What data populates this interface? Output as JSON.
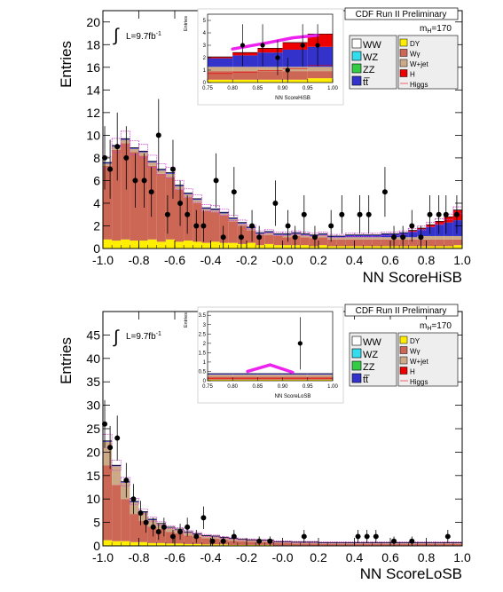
{
  "chart_data": [
    {
      "type": "bar",
      "label": "HiSB",
      "header": "CDF Run II Preliminary",
      "mass_label": "m",
      "mass_sub": "H",
      "mass_value": "=170",
      "lumi": "L=9.7fb",
      "lumi_sup": "-1",
      "integral_symbol": "∫",
      "xlabel": "NN ScoreHiSB",
      "ylabel": "Entries",
      "xlim": [
        -1.0,
        1.0
      ],
      "ylim": [
        0,
        21
      ],
      "xticks": [
        "-1.0",
        "-0.8",
        "-0.6",
        "-0.4",
        "-0.2",
        "-0.0",
        "0.2",
        "0.4",
        "0.6",
        "0.8",
        "1.0"
      ],
      "yticks": [
        "0",
        "2",
        "4",
        "6",
        "8",
        "10",
        "12",
        "14",
        "16",
        "18",
        "20"
      ],
      "legend_left": [
        {
          "name": "WW",
          "color": "#ffffff"
        },
        {
          "name": "WZ",
          "color": "#33ddee"
        },
        {
          "name": "ZZ",
          "color": "#33cc44"
        },
        {
          "name": "tt̅",
          "color": "#3333cc"
        }
      ],
      "legend_right": [
        {
          "name": "DY",
          "color": "#ffee00"
        },
        {
          "name": "Wγ",
          "color": "#cc6655"
        },
        {
          "name": "W+jet",
          "color": "#ccaa88"
        },
        {
          "name": "H",
          "color": "#ee0000"
        },
        {
          "name": "Higgs",
          "color": "#ee6666"
        }
      ],
      "stack_colors": {
        "DY": "#ffee00",
        "Wg": "#cc6655",
        "Wjet": "#ccaa88",
        "H": "#ee0000",
        "ttbar": "#3333cc",
        "ZZ": "#33cc44",
        "WZ": "#33ddee",
        "WW": "#ffffff",
        "band": "#cc44cc"
      },
      "bin_edges_range": [
        -1.0,
        1.0
      ],
      "bins": 40,
      "dy": [
        0.8,
        0.7,
        0.8,
        0.7,
        0.7,
        0.8,
        0.6,
        0.8,
        0.6,
        0.7,
        0.6,
        0.5,
        0.6,
        0.5,
        0.5,
        0.4,
        0.5,
        0.3,
        0.4,
        0.3,
        0.3,
        0.3,
        0.3,
        0.2,
        0.3,
        0.2,
        0.2,
        0.2,
        0.2,
        0.2,
        0.2,
        0.2,
        0.2,
        0.2,
        0.2,
        0.2,
        0.2,
        0.2,
        0.2,
        0.3
      ],
      "wg": [
        6.5,
        8.0,
        8.5,
        7.8,
        7.5,
        6.5,
        6.0,
        5.5,
        4.6,
        3.8,
        3.4,
        2.8,
        2.6,
        2.4,
        1.9,
        1.6,
        1.1,
        0.9,
        0.8,
        0.8,
        0.7,
        0.8,
        0.7,
        0.7,
        0.7,
        0.6,
        0.6,
        0.6,
        0.6,
        0.6,
        0.6,
        0.6,
        0.6,
        0.6,
        0.6,
        0.6,
        0.6,
        0.6,
        0.6,
        0.5
      ],
      "wjet": [
        0.2,
        0.3,
        0.3,
        0.3,
        0.3,
        0.3,
        0.3,
        0.3,
        0.3,
        0.3,
        0.3,
        0.2,
        0.2,
        0.2,
        0.2,
        0.2,
        0.2,
        0.1,
        0.2,
        0.1,
        0.2,
        0.2,
        0.2,
        0.2,
        0.2,
        0.2,
        0.2,
        0.2,
        0.2,
        0.2,
        0.2,
        0.2,
        0.2,
        0.2,
        0.2,
        0.3,
        0.3,
        0.3,
        0.3,
        0.3
      ],
      "other": [
        0.1,
        0.1,
        0.1,
        0.1,
        0.1,
        0.1,
        0.1,
        0.1,
        0.1,
        0.1,
        0.1,
        0.1,
        0.1,
        0.1,
        0.1,
        0.1,
        0.1,
        0.1,
        0.1,
        0.1,
        0.1,
        0.1,
        0.1,
        0.1,
        0.1,
        0.1,
        0.1,
        0.2,
        0.2,
        0.2,
        0.2,
        0.3,
        0.3,
        0.4,
        0.5,
        0.6,
        0.8,
        1.0,
        1.2,
        1.4
      ],
      "higgs": [
        0,
        0,
        0,
        0,
        0,
        0,
        0,
        0,
        0,
        0,
        0,
        0,
        0,
        0,
        0,
        0,
        0,
        0,
        0,
        0,
        0,
        0,
        0,
        0,
        0,
        0,
        0,
        0,
        0,
        0,
        0,
        0,
        0,
        0,
        0.1,
        0.1,
        0.2,
        0.3,
        0.5,
        0.9
      ],
      "data_points": [
        {
          "x": -0.99,
          "y": 8,
          "e": 2.8
        },
        {
          "x": -0.96,
          "y": 7,
          "e": 2.6
        },
        {
          "x": -0.92,
          "y": 9,
          "e": 3.0
        },
        {
          "x": -0.87,
          "y": 8,
          "e": 2.8
        },
        {
          "x": -0.82,
          "y": 6,
          "e": 2.4
        },
        {
          "x": -0.77,
          "y": 6,
          "e": 2.4
        },
        {
          "x": -0.73,
          "y": 5,
          "e": 2.2
        },
        {
          "x": -0.69,
          "y": 10,
          "e": 3.2
        },
        {
          "x": -0.64,
          "y": 3,
          "e": 1.7
        },
        {
          "x": -0.61,
          "y": 7,
          "e": 2.6
        },
        {
          "x": -0.57,
          "y": 4,
          "e": 2.0
        },
        {
          "x": -0.53,
          "y": 3,
          "e": 1.7
        },
        {
          "x": -0.48,
          "y": 2,
          "e": 1.4
        },
        {
          "x": -0.44,
          "y": 2,
          "e": 1.4
        },
        {
          "x": -0.37,
          "y": 6,
          "e": 2.4
        },
        {
          "x": -0.33,
          "y": 1,
          "e": 1.0
        },
        {
          "x": -0.27,
          "y": 5,
          "e": 2.2
        },
        {
          "x": -0.23,
          "y": 1,
          "e": 1.0
        },
        {
          "x": -0.17,
          "y": 2,
          "e": 1.4
        },
        {
          "x": -0.13,
          "y": 1,
          "e": 1.0
        },
        {
          "x": -0.04,
          "y": 4,
          "e": 2.0
        },
        {
          "x": 0.03,
          "y": 2,
          "e": 1.4
        },
        {
          "x": 0.07,
          "y": 1,
          "e": 1.0
        },
        {
          "x": 0.12,
          "y": 3,
          "e": 1.7
        },
        {
          "x": 0.18,
          "y": 1,
          "e": 1.0
        },
        {
          "x": 0.27,
          "y": 2,
          "e": 1.4
        },
        {
          "x": 0.33,
          "y": 3,
          "e": 1.7
        },
        {
          "x": 0.43,
          "y": 3,
          "e": 1.7
        },
        {
          "x": 0.48,
          "y": 3,
          "e": 1.7
        },
        {
          "x": 0.57,
          "y": 5,
          "e": 2.2
        },
        {
          "x": 0.62,
          "y": 1,
          "e": 1.0
        },
        {
          "x": 0.67,
          "y": 1,
          "e": 1.0
        },
        {
          "x": 0.72,
          "y": 2,
          "e": 1.4
        },
        {
          "x": 0.77,
          "y": 1,
          "e": 1.0
        },
        {
          "x": 0.82,
          "y": 3,
          "e": 1.7
        },
        {
          "x": 0.87,
          "y": 3,
          "e": 1.7
        },
        {
          "x": 0.91,
          "y": 3,
          "e": 1.7
        },
        {
          "x": 0.97,
          "y": 3,
          "e": 1.7
        }
      ],
      "inset": {
        "xlabel": "NN ScoreHiSB",
        "ylabel": "Entries",
        "xlim": [
          0.75,
          1.0
        ],
        "ylim": [
          0,
          5.5
        ],
        "xticks": [
          "0.75",
          "0.80",
          "0.85",
          "0.90",
          "0.95",
          "1.00"
        ],
        "yticks": [
          "0",
          "1",
          "2",
          "3",
          "4",
          "5"
        ],
        "data_points": [
          {
            "x": 0.82,
            "y": 3,
            "e": 1.7
          },
          {
            "x": 0.86,
            "y": 3,
            "e": 1.7
          },
          {
            "x": 0.89,
            "y": 2,
            "e": 1.4
          },
          {
            "x": 0.91,
            "y": 1,
            "e": 1.0
          },
          {
            "x": 0.94,
            "y": 3,
            "e": 1.7
          },
          {
            "x": 0.97,
            "y": 3,
            "e": 1.7
          }
        ]
      }
    },
    {
      "type": "bar",
      "label": "LoSB",
      "header": "CDF Run II Preliminary",
      "mass_label": "m",
      "mass_sub": "H",
      "mass_value": "=170",
      "lumi": "L=9.7fb",
      "lumi_sup": "-1",
      "integral_symbol": "∫",
      "xlabel": "NN ScoreLoSB",
      "ylabel": "Entries",
      "xlim": [
        -1.0,
        1.0
      ],
      "ylim": [
        0,
        50
      ],
      "xticks": [
        "-1.0",
        "-0.8",
        "-0.6",
        "-0.4",
        "-0.2",
        "-0.0",
        "0.2",
        "0.4",
        "0.6",
        "0.8",
        "1.0"
      ],
      "yticks": [
        "0",
        "5",
        "10",
        "15",
        "20",
        "25",
        "30",
        "35",
        "40",
        "45"
      ],
      "legend_left": [
        {
          "name": "WW",
          "color": "#ffffff"
        },
        {
          "name": "WZ",
          "color": "#33ddee"
        },
        {
          "name": "ZZ",
          "color": "#33cc44"
        },
        {
          "name": "tt̅",
          "color": "#3333cc"
        }
      ],
      "legend_right": [
        {
          "name": "DY",
          "color": "#ffee00"
        },
        {
          "name": "Wγ",
          "color": "#cc6655"
        },
        {
          "name": "W+jet",
          "color": "#ccaa88"
        },
        {
          "name": "H",
          "color": "#ee0000"
        },
        {
          "name": "Higgs",
          "color": "#ee6666"
        }
      ],
      "bins": 40,
      "dy": [
        1.2,
        1.0,
        1.0,
        0.8,
        0.8,
        0.6,
        0.6,
        0.5,
        0.5,
        0.4,
        0.4,
        0.3,
        0.3,
        0.3,
        0.2,
        0.2,
        0.2,
        0.2,
        0.2,
        0.1,
        0.1,
        0.1,
        0.1,
        0.1,
        0.1,
        0.1,
        0.1,
        0.1,
        0.1,
        0.1,
        0.1,
        0.1,
        0.1,
        0.1,
        0.1,
        0.1,
        0.1,
        0.1,
        0.1,
        0.1
      ],
      "wg": [
        16,
        12,
        9,
        6,
        4.5,
        3.5,
        3,
        2.5,
        2.2,
        1.8,
        1.5,
        1.3,
        1.2,
        1.0,
        0.9,
        0.8,
        0.7,
        0.6,
        0.6,
        0.5,
        0.5,
        0.4,
        0.4,
        0.4,
        0.3,
        0.3,
        0.3,
        0.3,
        0.3,
        0.3,
        0.3,
        0.3,
        0.3,
        0.3,
        0.3,
        0.3,
        0.3,
        0.3,
        0.3,
        0.3
      ],
      "wjet": [
        5,
        4,
        3.5,
        2.5,
        1.8,
        1.4,
        1.1,
        0.9,
        0.8,
        0.7,
        0.6,
        0.5,
        0.5,
        0.4,
        0.4,
        0.3,
        0.3,
        0.3,
        0.3,
        0.2,
        0.2,
        0.2,
        0.2,
        0.2,
        0.2,
        0.2,
        0.2,
        0.2,
        0.2,
        0.2,
        0.2,
        0.2,
        0.2,
        0.2,
        0.2,
        0.2,
        0.2,
        0.2,
        0.2,
        0.2
      ],
      "other": [
        0.2,
        0.2,
        0.2,
        0.2,
        0.2,
        0.2,
        0.1,
        0.1,
        0.1,
        0.1,
        0.1,
        0.1,
        0.1,
        0.1,
        0.1,
        0.1,
        0.1,
        0.1,
        0.1,
        0.1,
        0.1,
        0.1,
        0.1,
        0.1,
        0.1,
        0.1,
        0.1,
        0.1,
        0.1,
        0.1,
        0.1,
        0.1,
        0.1,
        0.1,
        0.1,
        0.1,
        0.1,
        0.1,
        0.1,
        0.1
      ],
      "higgs": [
        0,
        0,
        0,
        0,
        0,
        0,
        0,
        0,
        0,
        0,
        0,
        0,
        0,
        0,
        0,
        0,
        0,
        0,
        0,
        0,
        0,
        0,
        0,
        0,
        0,
        0,
        0,
        0,
        0,
        0,
        0,
        0,
        0,
        0,
        0,
        0,
        0,
        0,
        0,
        0
      ],
      "data_points": [
        {
          "x": -0.99,
          "y": 26,
          "e": 5.1
        },
        {
          "x": -0.96,
          "y": 21,
          "e": 4.6
        },
        {
          "x": -0.92,
          "y": 23,
          "e": 4.8
        },
        {
          "x": -0.87,
          "y": 14,
          "e": 3.7
        },
        {
          "x": -0.83,
          "y": 10,
          "e": 3.2
        },
        {
          "x": -0.79,
          "y": 7,
          "e": 2.6
        },
        {
          "x": -0.76,
          "y": 5,
          "e": 2.2
        },
        {
          "x": -0.72,
          "y": 4,
          "e": 2.0
        },
        {
          "x": -0.69,
          "y": 3,
          "e": 1.7
        },
        {
          "x": -0.66,
          "y": 4,
          "e": 2.0
        },
        {
          "x": -0.61,
          "y": 2,
          "e": 1.4
        },
        {
          "x": -0.57,
          "y": 3,
          "e": 1.7
        },
        {
          "x": -0.53,
          "y": 4,
          "e": 2.0
        },
        {
          "x": -0.48,
          "y": 2,
          "e": 1.4
        },
        {
          "x": -0.44,
          "y": 6,
          "e": 2.4
        },
        {
          "x": -0.39,
          "y": 1,
          "e": 1.0
        },
        {
          "x": -0.33,
          "y": 1,
          "e": 1.0
        },
        {
          "x": -0.27,
          "y": 2,
          "e": 1.4
        },
        {
          "x": -0.13,
          "y": 1,
          "e": 1.0
        },
        {
          "x": -0.07,
          "y": 1,
          "e": 1.0
        },
        {
          "x": 0.12,
          "y": 2,
          "e": 1.4
        },
        {
          "x": 0.42,
          "y": 2,
          "e": 1.4
        },
        {
          "x": 0.47,
          "y": 2,
          "e": 1.4
        },
        {
          "x": 0.52,
          "y": 2,
          "e": 1.4
        },
        {
          "x": 0.62,
          "y": 1,
          "e": 1.0
        },
        {
          "x": 0.72,
          "y": 1,
          "e": 1.0
        },
        {
          "x": 0.92,
          "y": 2,
          "e": 1.4
        }
      ],
      "inset": {
        "xlabel": "NN ScoreLoSB",
        "ylabel": "Entries",
        "xlim": [
          0.75,
          1.0
        ],
        "ylim": [
          0,
          3.7
        ],
        "xticks": [
          "0.75",
          "0.80",
          "0.85",
          "0.90",
          "0.95",
          "1.00"
        ],
        "yticks": [
          "0",
          "0.5",
          "1",
          "1.5",
          "2",
          "2.5",
          "3",
          "3.5"
        ],
        "data_points": [
          {
            "x": 0.935,
            "y": 2,
            "e": 1.4
          }
        ]
      }
    }
  ]
}
